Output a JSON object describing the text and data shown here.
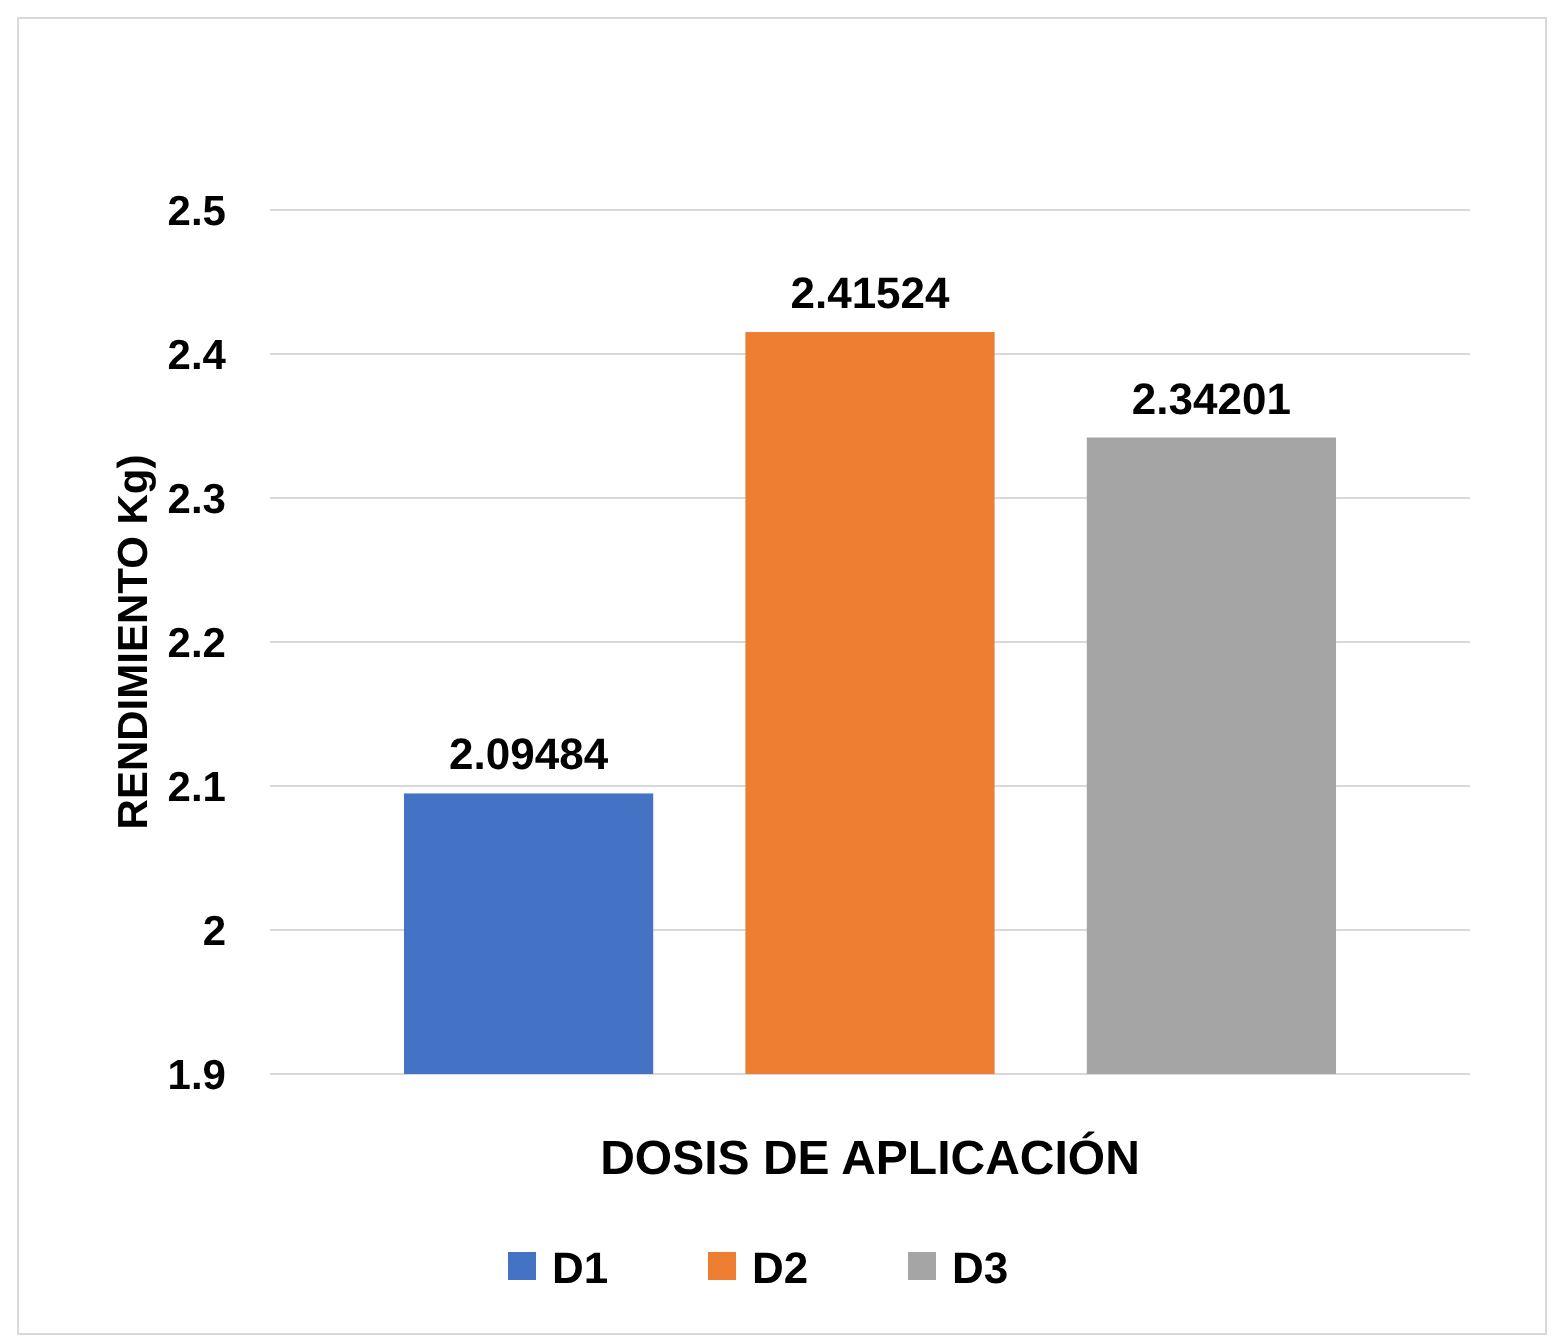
{
  "chart_data": {
    "type": "bar",
    "xlabel": "DOSIS DE APLICACIÓN",
    "ylabel": "RENDIMIENTO Kg)",
    "categories": [
      null
    ],
    "series": [
      {
        "name": "D1",
        "color": "#4472c4",
        "values": [
          2.09484
        ]
      },
      {
        "name": "D2",
        "color": "#ed7d31",
        "values": [
          2.41524
        ]
      },
      {
        "name": "D3",
        "color": "#a5a5a5",
        "values": [
          2.34201
        ]
      }
    ],
    "ylim": [
      1.9,
      2.5
    ],
    "yticks": [
      1.9,
      2,
      2.1,
      2.2,
      2.3,
      2.4,
      2.5
    ],
    "grid": "y",
    "legend": "bottom",
    "data_labels": true
  }
}
